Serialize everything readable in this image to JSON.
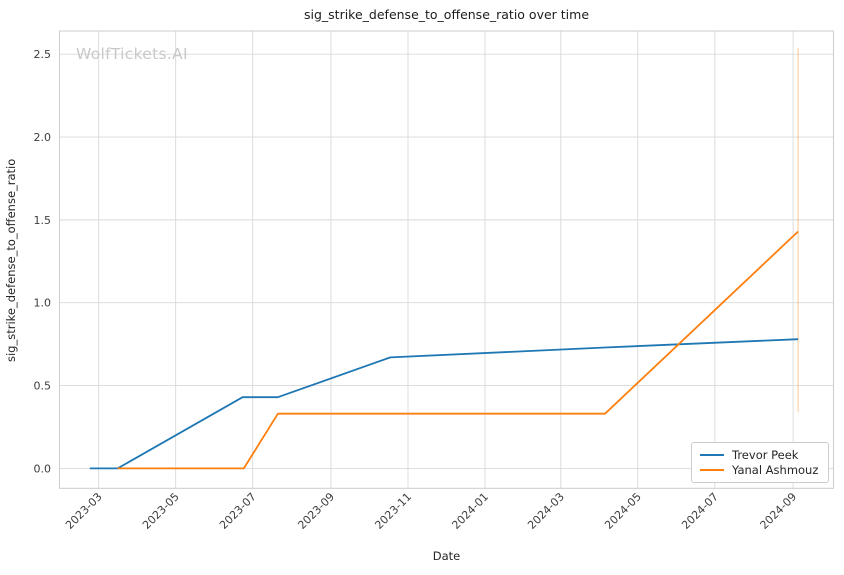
{
  "chart": {
    "title": "sig_strike_defense_to_offense_ratio over time",
    "xlabel": "Date",
    "ylabel": "sig_strike_defense_to_offense_ratio",
    "watermark": "WolfTickets.AI"
  },
  "chart_data": {
    "type": "line",
    "x_type": "date",
    "title": "sig_strike_defense_to_offense_ratio over time",
    "xlabel": "Date",
    "ylabel": "sig_strike_defense_to_offense_ratio",
    "xlim": [
      "2023-01-29",
      "2024-10-03"
    ],
    "ylim": [
      -0.12,
      2.64
    ],
    "grid": true,
    "legend_position": "lower right",
    "xticks": [
      {
        "value": "2023-03-01",
        "label": "2023-03"
      },
      {
        "value": "2023-05-01",
        "label": "2023-05"
      },
      {
        "value": "2023-07-01",
        "label": "2023-07"
      },
      {
        "value": "2023-09-01",
        "label": "2023-09"
      },
      {
        "value": "2023-11-01",
        "label": "2023-11"
      },
      {
        "value": "2024-01-01",
        "label": "2024-01"
      },
      {
        "value": "2024-03-01",
        "label": "2024-03"
      },
      {
        "value": "2024-05-01",
        "label": "2024-05"
      },
      {
        "value": "2024-07-01",
        "label": "2024-07"
      },
      {
        "value": "2024-09-01",
        "label": "2024-09"
      }
    ],
    "yticks": [
      {
        "value": 0.0,
        "label": "0.0"
      },
      {
        "value": 0.5,
        "label": "0.5"
      },
      {
        "value": 1.0,
        "label": "1.0"
      },
      {
        "value": 1.5,
        "label": "1.5"
      },
      {
        "value": 2.0,
        "label": "2.0"
      },
      {
        "value": 2.5,
        "label": "2.5"
      }
    ],
    "series": [
      {
        "name": "Trevor Peek",
        "color": "#1f77b4",
        "points": [
          [
            "2023-02-22",
            0.0
          ],
          [
            "2023-03-16",
            0.0
          ],
          [
            "2023-06-23",
            0.43
          ],
          [
            "2023-07-21",
            0.43
          ],
          [
            "2023-10-18",
            0.67
          ],
          [
            "2024-04-05",
            0.73
          ],
          [
            "2024-09-05",
            0.78
          ]
        ]
      },
      {
        "name": "Yanal Ashmouz",
        "color": "#ff7f0e",
        "points": [
          [
            "2023-03-16",
            0.0
          ],
          [
            "2023-06-24",
            0.0
          ],
          [
            "2023-07-21",
            0.33
          ],
          [
            "2024-04-05",
            0.33
          ],
          [
            "2024-09-05",
            1.43
          ]
        ]
      }
    ],
    "marker_line": {
      "date": "2024-09-05",
      "color": "#ff7f0e",
      "opacity": 0.3,
      "y_from": 0.34,
      "y_to": 2.54
    },
    "grid_color": "#d9d9d9",
    "spine_color": "#cccccc",
    "tick_color": "#3d3d3d"
  }
}
